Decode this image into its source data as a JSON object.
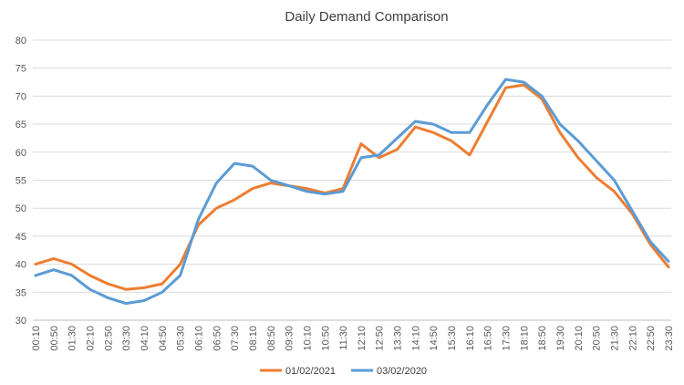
{
  "chart_data": {
    "type": "line",
    "title": "Daily Demand Comparison",
    "xlabel": "",
    "ylabel": "",
    "ylim": [
      30,
      80
    ],
    "yticks": [
      30,
      35,
      40,
      45,
      50,
      55,
      60,
      65,
      70,
      75,
      80
    ],
    "grid": true,
    "legend": "bottom",
    "categories": [
      "00:10",
      "00:50",
      "01:30",
      "02:10",
      "02:50",
      "03:30",
      "04:10",
      "04:50",
      "05:30",
      "06:10",
      "06:50",
      "07:30",
      "08:10",
      "08:50",
      "09:30",
      "10:10",
      "10:50",
      "11:30",
      "12:10",
      "12:50",
      "13:30",
      "14:10",
      "14:50",
      "15:30",
      "16:10",
      "16:50",
      "17:30",
      "18:10",
      "18:50",
      "19:30",
      "20:10",
      "20:50",
      "21:30",
      "22:10",
      "22:50",
      "23:30"
    ],
    "series": [
      {
        "name": "01/02/2021",
        "color": "#ed7d31",
        "values": [
          40.0,
          41.0,
          40.0,
          38.0,
          36.5,
          35.5,
          35.8,
          36.5,
          40.0,
          47.0,
          50.0,
          51.5,
          53.5,
          54.5,
          54.0,
          53.5,
          52.7,
          53.5,
          61.5,
          59.0,
          60.5,
          64.5,
          63.5,
          62.0,
          59.5,
          65.5,
          71.5,
          72.0,
          69.5,
          63.5,
          59.0,
          55.5,
          53.0,
          49.0,
          43.5,
          39.5
        ]
      },
      {
        "name": "03/02/2020",
        "color": "#5b9bd5",
        "values": [
          38.0,
          39.0,
          38.0,
          35.5,
          34.0,
          33.0,
          33.5,
          35.0,
          38.0,
          48.0,
          54.5,
          58.0,
          57.5,
          55.0,
          54.0,
          53.0,
          52.5,
          53.0,
          59.0,
          59.5,
          62.5,
          65.5,
          65.0,
          63.5,
          63.5,
          68.5,
          73.0,
          72.5,
          70.0,
          65.0,
          62.0,
          58.5,
          55.0,
          49.5,
          44.0,
          40.5
        ]
      }
    ]
  }
}
